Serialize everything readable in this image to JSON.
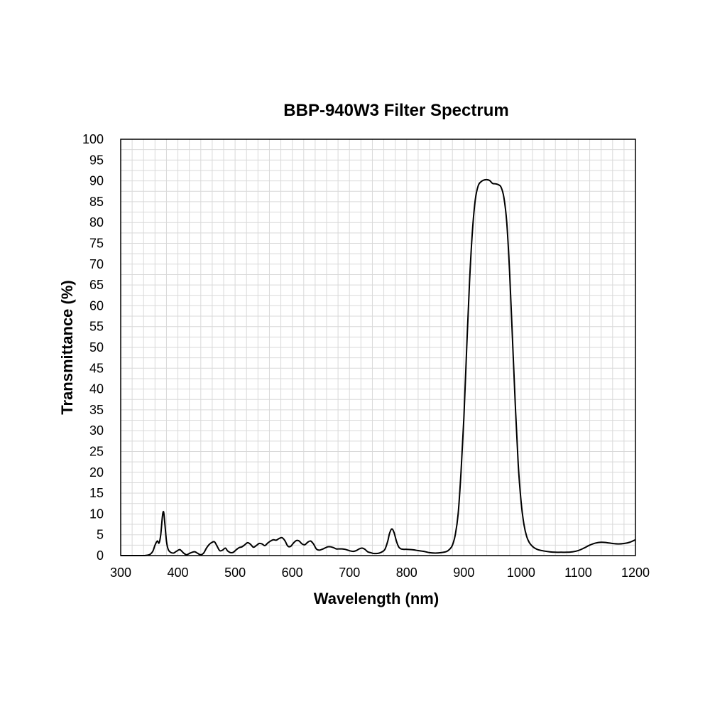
{
  "chart_data": {
    "type": "line",
    "title": "BBP-940W3 Filter Spectrum",
    "xlabel": "Wavelength (nm)",
    "ylabel": "Transmittance (%)",
    "xlim": [
      300,
      1200
    ],
    "ylim": [
      0,
      100
    ],
    "x_ticks": [
      300,
      400,
      500,
      600,
      700,
      800,
      900,
      1000,
      1100,
      1200
    ],
    "y_ticks": [
      0,
      5,
      10,
      15,
      20,
      25,
      30,
      35,
      40,
      45,
      50,
      55,
      60,
      65,
      70,
      75,
      80,
      85,
      90,
      95,
      100
    ],
    "x_minor_step": 20,
    "y_minor_step": 2.5,
    "grid": true,
    "legend": "none",
    "colors": {
      "line": "#000000",
      "grid": "#d9d9d9",
      "frame": "#000000"
    },
    "series": [
      {
        "x": [
          300,
          320,
          340,
          350,
          356,
          360,
          364,
          367,
          370,
          373,
          375,
          377,
          380,
          383,
          387,
          392,
          396,
          402,
          405,
          410,
          415,
          420,
          425,
          430,
          435,
          440,
          445,
          450,
          455,
          460,
          464,
          468,
          473,
          478,
          483,
          487,
          492,
          497,
          502,
          507,
          512,
          517,
          522,
          527,
          532,
          537,
          542,
          547,
          552,
          557,
          562,
          567,
          572,
          577,
          582,
          587,
          592,
          597,
          602,
          607,
          612,
          617,
          622,
          627,
          632,
          637,
          642,
          647,
          652,
          657,
          662,
          667,
          672,
          677,
          682,
          687,
          692,
          697,
          702,
          707,
          712,
          717,
          722,
          727,
          732,
          737,
          742,
          747,
          752,
          757,
          762,
          767,
          770,
          774,
          778,
          782,
          786,
          790,
          795,
          800,
          810,
          820,
          830,
          840,
          850,
          860,
          870,
          875,
          880,
          885,
          890,
          895,
          900,
          905,
          910,
          915,
          920,
          925,
          930,
          935,
          940,
          945,
          950,
          955,
          960,
          965,
          970,
          975,
          980,
          985,
          990,
          995,
          1000,
          1005,
          1010,
          1015,
          1020,
          1025,
          1030,
          1040,
          1050,
          1060,
          1070,
          1080,
          1090,
          1100,
          1110,
          1120,
          1130,
          1140,
          1150,
          1160,
          1170,
          1180,
          1190,
          1200
        ],
        "y": [
          0,
          0,
          0,
          0.2,
          1.0,
          2.5,
          3.5,
          3.0,
          5.0,
          9.5,
          10.5,
          8.0,
          3.5,
          1.5,
          0.8,
          0.6,
          0.9,
          1.4,
          1.3,
          0.6,
          0.2,
          0.5,
          0.8,
          0.9,
          0.5,
          0.2,
          0.6,
          1.8,
          2.7,
          3.2,
          3.3,
          2.4,
          1.2,
          1.3,
          1.8,
          1.1,
          0.7,
          0.8,
          1.4,
          1.9,
          2.1,
          2.6,
          3.1,
          2.7,
          2.0,
          2.4,
          2.9,
          2.8,
          2.4,
          3.0,
          3.5,
          3.8,
          3.7,
          4.1,
          4.3,
          3.6,
          2.3,
          2.2,
          3.0,
          3.6,
          3.5,
          2.8,
          2.6,
          3.2,
          3.5,
          2.8,
          1.6,
          1.3,
          1.5,
          1.8,
          2.1,
          2.1,
          1.9,
          1.6,
          1.6,
          1.6,
          1.5,
          1.3,
          1.1,
          1.0,
          1.2,
          1.6,
          1.8,
          1.5,
          0.9,
          0.7,
          0.5,
          0.5,
          0.6,
          0.9,
          1.5,
          3.5,
          5.3,
          6.4,
          5.5,
          3.5,
          2.1,
          1.6,
          1.5,
          1.5,
          1.4,
          1.2,
          1.0,
          0.7,
          0.6,
          0.7,
          1.0,
          1.5,
          2.5,
          5.0,
          10.0,
          20.0,
          33.0,
          50.0,
          66.0,
          78.0,
          85.5,
          88.8,
          89.8,
          90.2,
          90.3,
          90.1,
          89.4,
          89.3,
          89.1,
          88.5,
          86.0,
          80.0,
          68.0,
          52.0,
          36.0,
          22.0,
          13.0,
          7.5,
          4.5,
          3.0,
          2.2,
          1.7,
          1.4,
          1.1,
          0.9,
          0.8,
          0.8,
          0.8,
          0.9,
          1.2,
          1.8,
          2.5,
          3.0,
          3.2,
          3.1,
          2.9,
          2.8,
          2.9,
          3.2,
          3.8
        ]
      }
    ]
  }
}
